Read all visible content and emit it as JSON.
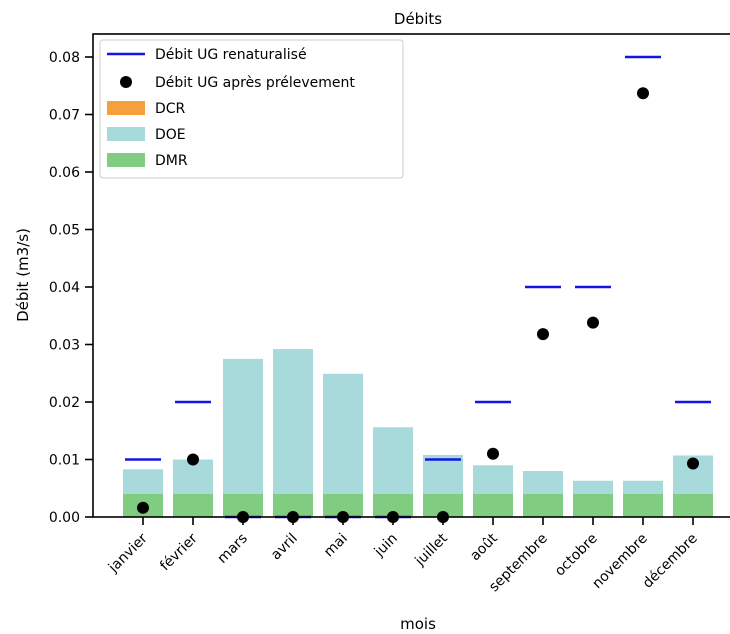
{
  "chart_data": {
    "type": "bar",
    "title": "Débits",
    "xlabel": "mois",
    "ylabel": "Débit (m3/s)",
    "ylim": [
      0,
      0.084
    ],
    "yticks": [
      "0.00",
      "0.01",
      "0.02",
      "0.03",
      "0.04",
      "0.05",
      "0.06",
      "0.07",
      "0.08"
    ],
    "categories": [
      "janvier",
      "février",
      "mars",
      "avril",
      "mai",
      "juin",
      "juillet",
      "août",
      "septembre",
      "octobre",
      "novembre",
      "décembre"
    ],
    "legend_position": "top-left",
    "grid": false,
    "series": [
      {
        "name": "Débit UG renaturalisé",
        "kind": "hline",
        "color": "#1414e6",
        "values": [
          0.01,
          0.02,
          0.0,
          0.0,
          0.0,
          0.0,
          0.01,
          0.02,
          0.04,
          0.04,
          0.08,
          0.02
        ]
      },
      {
        "name": "Débit UG après prélevement",
        "kind": "scatter",
        "color": "#000000",
        "values": [
          0.0016,
          0.01,
          0.0,
          0.0,
          0.0,
          0.0,
          0.0,
          0.011,
          0.0318,
          0.0338,
          0.0737,
          0.0093
        ]
      },
      {
        "name": "DCR",
        "kind": "bar",
        "color": "#f5a03c",
        "values": [
          0,
          0,
          0,
          0,
          0,
          0,
          0,
          0,
          0,
          0,
          0,
          0
        ]
      },
      {
        "name": "DOE",
        "kind": "bar",
        "color": "#a8dadc",
        "values": [
          0.0083,
          0.01,
          0.0275,
          0.0292,
          0.0249,
          0.0156,
          0.0108,
          0.009,
          0.008,
          0.0063,
          0.0063,
          0.0107
        ]
      },
      {
        "name": "DMR",
        "kind": "bar",
        "color": "#80cc80",
        "values": [
          0.004,
          0.004,
          0.004,
          0.004,
          0.004,
          0.004,
          0.004,
          0.004,
          0.004,
          0.004,
          0.004,
          0.004
        ]
      }
    ]
  }
}
